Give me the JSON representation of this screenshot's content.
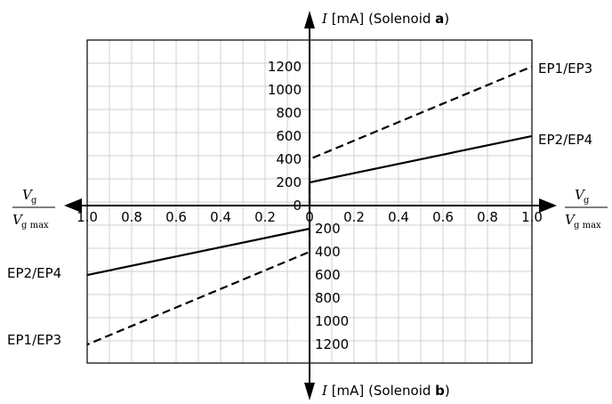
{
  "chart_data": {
    "type": "line",
    "x_axis": {
      "label_var": "V",
      "label_sub_top": "g",
      "label_sub_bottom": "g max",
      "ticks_right": [
        "0",
        "0.2",
        "0.4",
        "0.6",
        "0.8",
        "1.0"
      ],
      "ticks_left": [
        "1.0",
        "0.8",
        "0.6",
        "0.4",
        "0.2"
      ],
      "range": [
        0,
        1
      ]
    },
    "y_axis_top": {
      "var": "I",
      "unit": "[mA]",
      "open": "(Solenoid ",
      "bold": "a",
      "close": ")",
      "ticks": [
        "0",
        "200",
        "400",
        "600",
        "800",
        "1000",
        "1200"
      ],
      "range": [
        0,
        1400
      ]
    },
    "y_axis_bottom": {
      "var": "I",
      "unit": "[mA]",
      "open": "(Solenoid ",
      "bold": "b",
      "close": ")",
      "ticks": [
        "200",
        "400",
        "600",
        "800",
        "1000",
        "1200"
      ],
      "range": [
        0,
        1400
      ]
    },
    "series": [
      {
        "name": "EP1/EP3",
        "quadrant": "a",
        "style": "dashed",
        "x": [
          0,
          0,
          1.0
        ],
        "y": [
          0,
          400,
          1200
        ]
      },
      {
        "name": "EP2/EP4",
        "quadrant": "a",
        "style": "solid",
        "x": [
          0,
          0,
          1.0
        ],
        "y": [
          0,
          200,
          600
        ]
      },
      {
        "name": "EP2/EP4",
        "quadrant": "b",
        "style": "solid",
        "x": [
          0,
          1.0
        ],
        "y": [
          200,
          600
        ]
      },
      {
        "name": "EP1/EP3",
        "quadrant": "b",
        "style": "dashed",
        "x": [
          0,
          0,
          1.0
        ],
        "y": [
          200,
          400,
          1200
        ]
      }
    ],
    "grid": true
  }
}
